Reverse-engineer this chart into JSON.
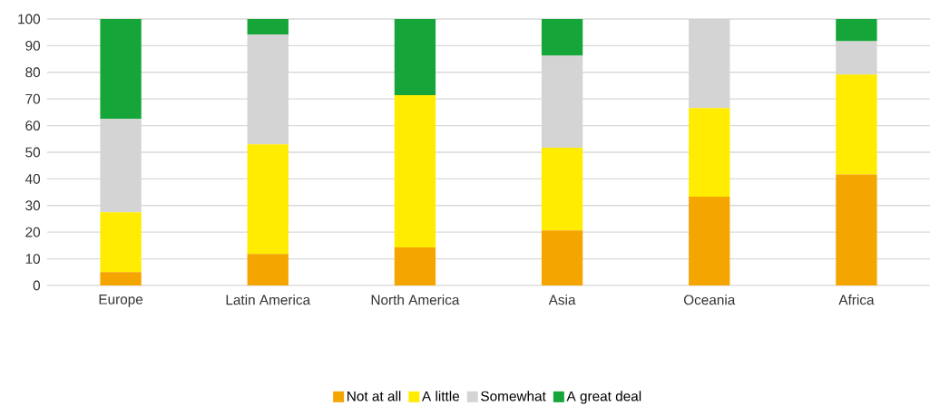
{
  "chart_data": {
    "type": "bar",
    "stacked": true,
    "categories": [
      "Europe",
      "Latin America",
      "North America",
      "Asia",
      "Oceania",
      "Africa"
    ],
    "series": [
      {
        "name": "Not at all",
        "color": "#f5a500",
        "values": [
          5,
          11.8,
          14.3,
          20.7,
          33.3,
          41.7
        ]
      },
      {
        "name": "A little",
        "color": "#ffec00",
        "values": [
          22.5,
          41.2,
          57.1,
          31.0,
          33.3,
          37.5
        ]
      },
      {
        "name": "Somewhat",
        "color": "#d4d4d4",
        "values": [
          35,
          41.2,
          0,
          34.5,
          33.4,
          12.5
        ]
      },
      {
        "name": "A great deal",
        "color": "#16a539",
        "values": [
          37.5,
          5.8,
          28.6,
          13.8,
          0,
          8.3
        ]
      }
    ],
    "ylim": [
      0,
      100
    ],
    "yticks": [
      0,
      10,
      20,
      30,
      40,
      50,
      60,
      70,
      80,
      90,
      100
    ],
    "grid": "y",
    "legend": "bottom"
  }
}
